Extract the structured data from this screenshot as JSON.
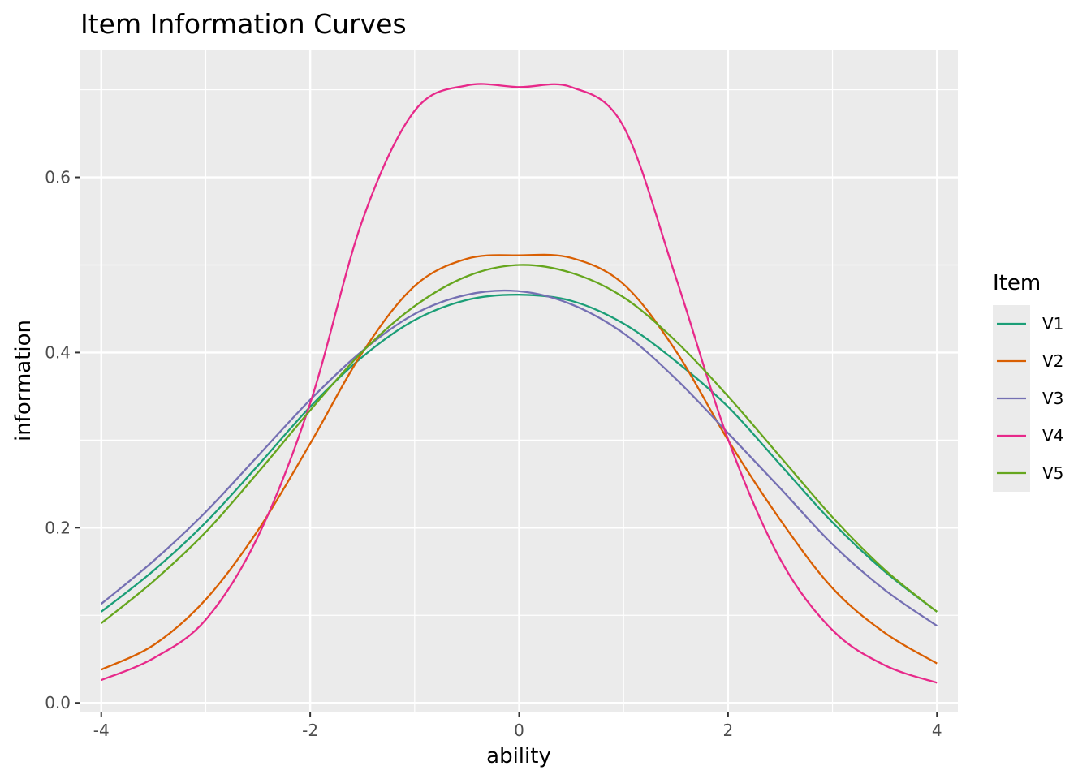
{
  "chart_data": {
    "type": "line",
    "title": "Item Information Curves",
    "xlabel": "ability",
    "ylabel": "information",
    "xlim": [
      -4.2,
      4.2
    ],
    "ylim": [
      -0.01,
      0.745
    ],
    "x_ticks": [
      -4,
      -2,
      0,
      2,
      4
    ],
    "x_tick_labels": [
      "-4",
      "-2",
      "0",
      "2",
      "4"
    ],
    "y_ticks": [
      0.0,
      0.2,
      0.4,
      0.6
    ],
    "y_tick_labels": [
      "0.0",
      "0.2",
      "0.4",
      "0.6"
    ],
    "x_minor": [
      -3,
      -1,
      1,
      3
    ],
    "y_minor": [
      0.1,
      0.3,
      0.5,
      0.7
    ],
    "grid": true,
    "legend": {
      "title": "Item",
      "position": "right"
    },
    "x": [
      -4,
      -3.5,
      -3,
      -2.5,
      -2,
      -1.5,
      -1,
      -0.5,
      0,
      0.5,
      1,
      1.5,
      2,
      2.5,
      3,
      3.5,
      4
    ],
    "series": [
      {
        "name": "V1",
        "color": "#1b9e77",
        "values": [
          0.104,
          0.151,
          0.206,
          0.271,
          0.338,
          0.395,
          0.437,
          0.46,
          0.466,
          0.459,
          0.433,
          0.39,
          0.338,
          0.272,
          0.206,
          0.15,
          0.104
        ]
      },
      {
        "name": "V2",
        "color": "#d95f02",
        "values": [
          0.038,
          0.066,
          0.118,
          0.197,
          0.296,
          0.4,
          0.476,
          0.507,
          0.511,
          0.508,
          0.478,
          0.402,
          0.3,
          0.209,
          0.131,
          0.08,
          0.045
        ]
      },
      {
        "name": "V3",
        "color": "#7570b3",
        "values": [
          0.113,
          0.162,
          0.218,
          0.282,
          0.346,
          0.402,
          0.444,
          0.466,
          0.47,
          0.455,
          0.422,
          0.37,
          0.308,
          0.245,
          0.181,
          0.129,
          0.088
        ]
      },
      {
        "name": "V4",
        "color": "#e7298a",
        "values": [
          0.026,
          0.051,
          0.095,
          0.19,
          0.342,
          0.551,
          0.676,
          0.705,
          0.703,
          0.703,
          0.658,
          0.486,
          0.301,
          0.164,
          0.083,
          0.043,
          0.023
        ]
      },
      {
        "name": "V5",
        "color": "#66a61e",
        "values": [
          0.091,
          0.139,
          0.195,
          0.263,
          0.334,
          0.401,
          0.453,
          0.487,
          0.5,
          0.491,
          0.463,
          0.413,
          0.35,
          0.281,
          0.212,
          0.152,
          0.104
        ]
      }
    ]
  }
}
